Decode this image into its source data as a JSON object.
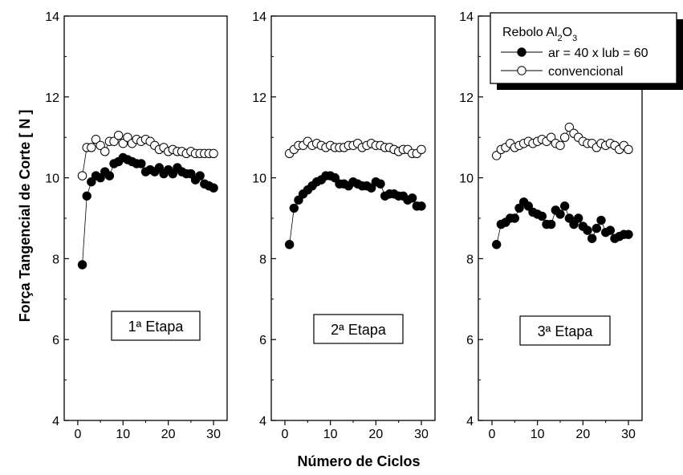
{
  "chart_data": {
    "type": "scatter",
    "ylabel": "Força Tangencial de Corte [ N ]",
    "xlabel": "Número de Ciclos",
    "ylim": [
      4,
      14
    ],
    "yticks": [
      4,
      6,
      8,
      10,
      12,
      14
    ],
    "xlim": [
      -3,
      33
    ],
    "xticks": [
      0,
      10,
      20,
      30
    ],
    "legend": {
      "title_prefix": "Rebolo Al",
      "title_sub1": "2",
      "title_mid": "O",
      "title_sub2": "3",
      "entries": [
        "ar = 40 x lub = 60",
        "convencional"
      ],
      "position": "top-right"
    },
    "panels": [
      {
        "annotation": "1ª Etapa",
        "series": [
          {
            "marker": "filled",
            "x": [
              1,
              2,
              3,
              4,
              5,
              6,
              7,
              8,
              9,
              10,
              11,
              12,
              13,
              14,
              15,
              16,
              17,
              18,
              19,
              20,
              21,
              22,
              23,
              24,
              25,
              26,
              27,
              28,
              29,
              30
            ],
            "y": [
              7.85,
              9.55,
              9.9,
              10.05,
              10.0,
              10.15,
              10.05,
              10.35,
              10.4,
              10.5,
              10.45,
              10.4,
              10.35,
              10.35,
              10.15,
              10.2,
              10.15,
              10.25,
              10.1,
              10.2,
              10.1,
              10.25,
              10.15,
              10.1,
              10.1,
              9.95,
              10.05,
              9.85,
              9.8,
              9.75
            ]
          },
          {
            "marker": "open",
            "x": [
              1,
              2,
              3,
              4,
              5,
              6,
              7,
              8,
              9,
              10,
              11,
              12,
              13,
              14,
              15,
              16,
              17,
              18,
              19,
              20,
              21,
              22,
              23,
              24,
              25,
              26,
              27,
              28,
              29,
              30
            ],
            "y": [
              10.05,
              10.75,
              10.75,
              10.95,
              10.8,
              10.65,
              10.9,
              10.9,
              11.05,
              10.85,
              11.0,
              10.85,
              10.95,
              10.9,
              10.95,
              10.9,
              10.8,
              10.7,
              10.75,
              10.65,
              10.7,
              10.65,
              10.65,
              10.6,
              10.65,
              10.6,
              10.6,
              10.6,
              10.6,
              10.6
            ]
          }
        ]
      },
      {
        "annotation": "2ª Etapa",
        "series": [
          {
            "marker": "filled",
            "x": [
              1,
              2,
              3,
              4,
              5,
              6,
              7,
              8,
              9,
              10,
              11,
              12,
              13,
              14,
              15,
              16,
              17,
              18,
              19,
              20,
              21,
              22,
              23,
              24,
              25,
              26,
              27,
              28,
              29,
              30
            ],
            "y": [
              8.35,
              9.25,
              9.45,
              9.6,
              9.7,
              9.8,
              9.9,
              9.95,
              10.05,
              10.05,
              10.0,
              9.85,
              9.85,
              9.8,
              9.9,
              9.85,
              9.8,
              9.8,
              9.75,
              9.9,
              9.85,
              9.55,
              9.6,
              9.6,
              9.55,
              9.55,
              9.45,
              9.5,
              9.3,
              9.3
            ]
          },
          {
            "marker": "open",
            "x": [
              1,
              2,
              3,
              4,
              5,
              6,
              7,
              8,
              9,
              10,
              11,
              12,
              13,
              14,
              15,
              16,
              17,
              18,
              19,
              20,
              21,
              22,
              23,
              24,
              25,
              26,
              27,
              28,
              29,
              30
            ],
            "y": [
              10.6,
              10.7,
              10.8,
              10.8,
              10.9,
              10.8,
              10.85,
              10.8,
              10.75,
              10.8,
              10.75,
              10.75,
              10.75,
              10.8,
              10.8,
              10.85,
              10.75,
              10.8,
              10.85,
              10.8,
              10.8,
              10.75,
              10.75,
              10.7,
              10.65,
              10.7,
              10.7,
              10.6,
              10.6,
              10.7
            ]
          }
        ]
      },
      {
        "annotation": "3ª Etapa",
        "series": [
          {
            "marker": "filled",
            "x": [
              1,
              2,
              3,
              4,
              5,
              6,
              7,
              8,
              9,
              10,
              11,
              12,
              13,
              14,
              15,
              16,
              17,
              18,
              19,
              20,
              21,
              22,
              23,
              24,
              25,
              26,
              27,
              28,
              29,
              30
            ],
            "y": [
              8.35,
              8.85,
              8.9,
              9.0,
              9.0,
              9.25,
              9.4,
              9.3,
              9.15,
              9.1,
              9.05,
              8.85,
              8.85,
              9.2,
              9.1,
              9.3,
              9.0,
              8.85,
              9.0,
              8.8,
              8.7,
              8.5,
              8.75,
              8.95,
              8.65,
              8.7,
              8.5,
              8.55,
              8.6,
              8.6
            ]
          },
          {
            "marker": "open",
            "x": [
              1,
              2,
              3,
              4,
              5,
              6,
              7,
              8,
              9,
              10,
              11,
              12,
              13,
              14,
              15,
              16,
              17,
              18,
              19,
              20,
              21,
              22,
              23,
              24,
              25,
              26,
              27,
              28,
              29,
              30
            ],
            "y": [
              10.55,
              10.7,
              10.75,
              10.85,
              10.75,
              10.8,
              10.85,
              10.9,
              10.85,
              10.9,
              10.95,
              10.9,
              11.0,
              10.85,
              10.8,
              11.0,
              11.25,
              11.1,
              11.0,
              10.9,
              10.85,
              10.85,
              10.75,
              10.85,
              10.8,
              10.85,
              10.8,
              10.7,
              10.8,
              10.7
            ]
          }
        ]
      }
    ]
  }
}
